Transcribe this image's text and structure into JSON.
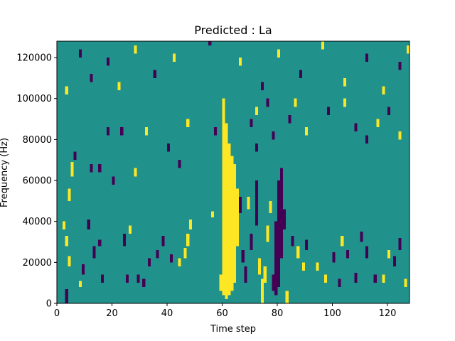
{
  "chart_data": {
    "type": "heatmap",
    "title": "Predicted : La",
    "xlabel": "Time step",
    "ylabel": "Frequency (Hz)",
    "xlim": [
      0,
      128
    ],
    "ylim": [
      0,
      128000
    ],
    "x_ticks": [
      0,
      20,
      40,
      60,
      80,
      100,
      120
    ],
    "x_tick_labels": [
      "0",
      "20",
      "40",
      "60",
      "80",
      "100",
      "120"
    ],
    "y_ticks": [
      0,
      20000,
      40000,
      60000,
      80000,
      100000,
      120000
    ],
    "y_tick_labels": [
      "0",
      "20000",
      "40000",
      "60000",
      "80000",
      "100000",
      "120000"
    ],
    "n_time_steps": 128,
    "n_freq_bins": 128,
    "levels": [
      -1,
      0,
      1
    ],
    "colors": {
      "low": "#440154",
      "mid": "#21918c",
      "high": "#fde725"
    },
    "grid": false,
    "cells": [
      {
        "t": 3,
        "f0": 0,
        "f1": 7,
        "v": -1
      },
      {
        "t": 8,
        "f0": 8,
        "f1": 11,
        "v": 1
      },
      {
        "t": 4,
        "f0": 18,
        "f1": 23,
        "v": 1
      },
      {
        "t": 9,
        "f0": 14,
        "f1": 19,
        "v": -1
      },
      {
        "t": 3,
        "f0": 28,
        "f1": 33,
        "v": 1
      },
      {
        "t": 2,
        "f0": 36,
        "f1": 40,
        "v": 1
      },
      {
        "t": 4,
        "f0": 50,
        "f1": 56,
        "v": 1
      },
      {
        "t": 5,
        "f0": 62,
        "f1": 69,
        "v": 1
      },
      {
        "t": 6,
        "f0": 70,
        "f1": 74,
        "v": -1
      },
      {
        "t": 11,
        "f0": 36,
        "f1": 41,
        "v": -1
      },
      {
        "t": 13,
        "f0": 22,
        "f1": 28,
        "v": -1
      },
      {
        "t": 12,
        "f0": 64,
        "f1": 68,
        "v": -1
      },
      {
        "t": 15,
        "f0": 64,
        "f1": 68,
        "v": -1
      },
      {
        "t": 16,
        "f0": 10,
        "f1": 14,
        "v": -1
      },
      {
        "t": 15,
        "f0": 28,
        "f1": 31,
        "v": -1
      },
      {
        "t": 20,
        "f0": 58,
        "f1": 62,
        "v": -1
      },
      {
        "t": 24,
        "f0": 28,
        "f1": 34,
        "v": -1
      },
      {
        "t": 25,
        "f0": 10,
        "f1": 14,
        "v": -1
      },
      {
        "t": 26,
        "f0": 34,
        "f1": 38,
        "v": 1
      },
      {
        "t": 29,
        "f0": 10,
        "f1": 14,
        "v": -1
      },
      {
        "t": 28,
        "f0": 62,
        "f1": 66,
        "v": 1
      },
      {
        "t": 31,
        "f0": 8,
        "f1": 12,
        "v": -1
      },
      {
        "t": 33,
        "f0": 18,
        "f1": 22,
        "v": -1
      },
      {
        "t": 36,
        "f0": 22,
        "f1": 26,
        "v": -1
      },
      {
        "t": 38,
        "f0": 28,
        "f1": 33,
        "v": -1
      },
      {
        "t": 41,
        "f0": 20,
        "f1": 24,
        "v": -1
      },
      {
        "t": 44,
        "f0": 18,
        "f1": 22,
        "v": 1
      },
      {
        "t": 46,
        "f0": 22,
        "f1": 27,
        "v": 1
      },
      {
        "t": 47,
        "f0": 28,
        "f1": 34,
        "v": 1
      },
      {
        "t": 48,
        "f0": 36,
        "f1": 41,
        "v": 1
      },
      {
        "t": 44,
        "f0": 66,
        "f1": 70,
        "v": -1
      },
      {
        "t": 56,
        "f0": 42,
        "f1": 45,
        "v": 1
      },
      {
        "t": 59,
        "f0": 6,
        "f1": 14,
        "v": 1
      },
      {
        "t": 60,
        "f0": 4,
        "f1": 96,
        "v": 1
      },
      {
        "t": 61,
        "f0": 2,
        "f1": 88,
        "v": 1
      },
      {
        "t": 62,
        "f0": 4,
        "f1": 78,
        "v": 1
      },
      {
        "t": 63,
        "f0": 6,
        "f1": 72,
        "v": 1
      },
      {
        "t": 64,
        "f0": 10,
        "f1": 68,
        "v": 1
      },
      {
        "t": 65,
        "f0": 28,
        "f1": 56,
        "v": 1
      },
      {
        "t": 66,
        "f0": 44,
        "f1": 52,
        "v": -1
      },
      {
        "t": 67,
        "f0": 20,
        "f1": 26,
        "v": -1
      },
      {
        "t": 68,
        "f0": 10,
        "f1": 18,
        "v": -1
      },
      {
        "t": 69,
        "f0": 46,
        "f1": 52,
        "v": 1
      },
      {
        "t": 70,
        "f0": 26,
        "f1": 34,
        "v": -1
      },
      {
        "t": 72,
        "f0": 38,
        "f1": 60,
        "v": -1
      },
      {
        "t": 72,
        "f0": 74,
        "f1": 78,
        "v": -1
      },
      {
        "t": 73,
        "f0": 14,
        "f1": 22,
        "v": 1
      },
      {
        "t": 74,
        "f0": 0,
        "f1": 12,
        "v": 1
      },
      {
        "t": 75,
        "f0": 10,
        "f1": 18,
        "v": 1
      },
      {
        "t": 76,
        "f0": 30,
        "f1": 38,
        "v": 1
      },
      {
        "t": 77,
        "f0": 44,
        "f1": 50,
        "v": 1
      },
      {
        "t": 78,
        "f0": 6,
        "f1": 14,
        "v": -1
      },
      {
        "t": 79,
        "f0": 4,
        "f1": 40,
        "v": -1
      },
      {
        "t": 80,
        "f0": 8,
        "f1": 60,
        "v": -1
      },
      {
        "t": 81,
        "f0": 22,
        "f1": 66,
        "v": -1
      },
      {
        "t": 82,
        "f0": 36,
        "f1": 46,
        "v": -1
      },
      {
        "t": 83,
        "f0": 0,
        "f1": 6,
        "v": 1
      },
      {
        "t": 85,
        "f0": 28,
        "f1": 33,
        "v": -1
      },
      {
        "t": 87,
        "f0": 22,
        "f1": 28,
        "v": 1
      },
      {
        "t": 89,
        "f0": 16,
        "f1": 20,
        "v": 1
      },
      {
        "t": 90,
        "f0": 26,
        "f1": 31,
        "v": -1
      },
      {
        "t": 94,
        "f0": 16,
        "f1": 20,
        "v": 1
      },
      {
        "t": 97,
        "f0": 10,
        "f1": 14,
        "v": 1
      },
      {
        "t": 100,
        "f0": 20,
        "f1": 25,
        "v": -1
      },
      {
        "t": 102,
        "f0": 8,
        "f1": 12,
        "v": -1
      },
      {
        "t": 103,
        "f0": 28,
        "f1": 33,
        "v": 1
      },
      {
        "t": 105,
        "f0": 22,
        "f1": 26,
        "v": -1
      },
      {
        "t": 108,
        "f0": 10,
        "f1": 15,
        "v": -1
      },
      {
        "t": 110,
        "f0": 30,
        "f1": 35,
        "v": -1
      },
      {
        "t": 112,
        "f0": 22,
        "f1": 28,
        "v": -1
      },
      {
        "t": 115,
        "f0": 10,
        "f1": 14,
        "v": -1
      },
      {
        "t": 118,
        "f0": 10,
        "f1": 14,
        "v": 1
      },
      {
        "t": 120,
        "f0": 22,
        "f1": 26,
        "v": 1
      },
      {
        "t": 122,
        "f0": 18,
        "f1": 23,
        "v": -1
      },
      {
        "t": 124,
        "f0": 26,
        "f1": 32,
        "v": -1
      },
      {
        "t": 126,
        "f0": 8,
        "f1": 12,
        "v": 1
      },
      {
        "t": 18,
        "f0": 82,
        "f1": 86,
        "v": -1
      },
      {
        "t": 23,
        "f0": 82,
        "f1": 86,
        "v": -1
      },
      {
        "t": 32,
        "f0": 82,
        "f1": 86,
        "v": 1
      },
      {
        "t": 40,
        "f0": 74,
        "f1": 78,
        "v": -1
      },
      {
        "t": 47,
        "f0": 86,
        "f1": 90,
        "v": 1
      },
      {
        "t": 57,
        "f0": 82,
        "f1": 86,
        "v": -1
      },
      {
        "t": 60,
        "f0": 96,
        "f1": 100,
        "v": 1
      },
      {
        "t": 70,
        "f0": 86,
        "f1": 90,
        "v": -1
      },
      {
        "t": 72,
        "f0": 92,
        "f1": 96,
        "v": 1
      },
      {
        "t": 76,
        "f0": 96,
        "f1": 100,
        "v": -1
      },
      {
        "t": 78,
        "f0": 80,
        "f1": 84,
        "v": -1
      },
      {
        "t": 84,
        "f0": 88,
        "f1": 92,
        "v": -1
      },
      {
        "t": 86,
        "f0": 96,
        "f1": 100,
        "v": 1
      },
      {
        "t": 90,
        "f0": 82,
        "f1": 86,
        "v": 1
      },
      {
        "t": 98,
        "f0": 92,
        "f1": 96,
        "v": -1
      },
      {
        "t": 104,
        "f0": 96,
        "f1": 100,
        "v": 1
      },
      {
        "t": 108,
        "f0": 84,
        "f1": 88,
        "v": -1
      },
      {
        "t": 112,
        "f0": 78,
        "f1": 82,
        "v": -1
      },
      {
        "t": 116,
        "f0": 86,
        "f1": 90,
        "v": 1
      },
      {
        "t": 120,
        "f0": 92,
        "f1": 96,
        "v": -1
      },
      {
        "t": 124,
        "f0": 80,
        "f1": 84,
        "v": 1
      },
      {
        "t": 3,
        "f0": 102,
        "f1": 106,
        "v": 1
      },
      {
        "t": 8,
        "f0": 120,
        "f1": 124,
        "v": -1
      },
      {
        "t": 12,
        "f0": 108,
        "f1": 112,
        "v": -1
      },
      {
        "t": 18,
        "f0": 116,
        "f1": 120,
        "v": -1
      },
      {
        "t": 22,
        "f0": 104,
        "f1": 108,
        "v": 1
      },
      {
        "t": 28,
        "f0": 122,
        "f1": 126,
        "v": 1
      },
      {
        "t": 35,
        "f0": 110,
        "f1": 114,
        "v": -1
      },
      {
        "t": 42,
        "f0": 118,
        "f1": 122,
        "v": 1
      },
      {
        "t": 55,
        "f0": 126,
        "f1": 128,
        "v": -1
      },
      {
        "t": 66,
        "f0": 116,
        "f1": 120,
        "v": 1
      },
      {
        "t": 74,
        "f0": 104,
        "f1": 108,
        "v": -1
      },
      {
        "t": 80,
        "f0": 120,
        "f1": 124,
        "v": 1
      },
      {
        "t": 88,
        "f0": 110,
        "f1": 114,
        "v": -1
      },
      {
        "t": 96,
        "f0": 124,
        "f1": 128,
        "v": 1
      },
      {
        "t": 104,
        "f0": 106,
        "f1": 110,
        "v": 1
      },
      {
        "t": 112,
        "f0": 118,
        "f1": 122,
        "v": -1
      },
      {
        "t": 118,
        "f0": 102,
        "f1": 106,
        "v": 1
      },
      {
        "t": 124,
        "f0": 114,
        "f1": 118,
        "v": -1
      },
      {
        "t": 127,
        "f0": 122,
        "f1": 126,
        "v": 1
      }
    ]
  }
}
